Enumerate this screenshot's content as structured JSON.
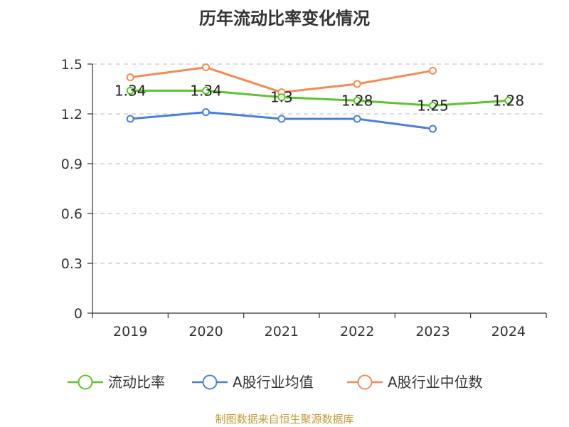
{
  "chart_data": {
    "type": "line",
    "title": "历年流动比率变化情况",
    "categories": [
      "2019",
      "2020",
      "2021",
      "2022",
      "2023",
      "2024"
    ],
    "ylim": [
      0,
      1.5
    ],
    "yticks": [
      "0",
      "0.3",
      "0.6",
      "0.9",
      "1.2",
      "1.5"
    ],
    "grid": true,
    "legend_position": "bottom",
    "series": [
      {
        "name": "流动比率",
        "color": "#5cc42b",
        "values": [
          1.34,
          1.34,
          1.3,
          1.28,
          1.25,
          1.28
        ],
        "labels": [
          "1.34",
          "1.34",
          "1.3",
          "1.28",
          "1.25",
          "1.28"
        ]
      },
      {
        "name": "A股行业均值",
        "color": "#4a7fd9",
        "values": [
          1.17,
          1.21,
          1.17,
          1.17,
          1.11,
          null
        ]
      },
      {
        "name": "A股行业中位数",
        "color": "#f58a52",
        "values": [
          1.42,
          1.48,
          1.33,
          1.38,
          1.46,
          null
        ]
      }
    ]
  },
  "source": "制图数据来自恒生聚源数据库"
}
